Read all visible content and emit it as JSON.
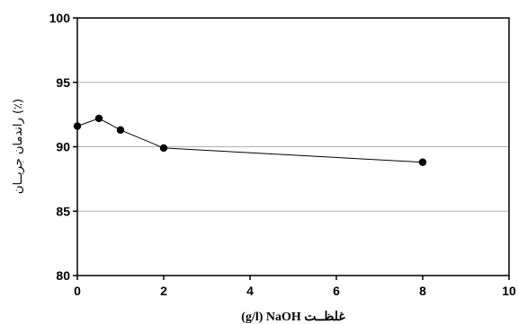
{
  "chart_data": {
    "type": "line",
    "title": "",
    "xlabel": "(g/l) NaOH غلظــت",
    "ylabel": "راندمان جریــان (٪)",
    "xlim": [
      0,
      10
    ],
    "ylim": [
      80,
      100
    ],
    "xticks": [
      0,
      2,
      4,
      6,
      8,
      10
    ],
    "yticks": [
      80,
      85,
      90,
      95,
      100
    ],
    "grid": "horizontal",
    "legend": "none",
    "series": [
      {
        "x": [
          0,
          0.5,
          1,
          2,
          8
        ],
        "y": [
          91.6,
          92.2,
          91.3,
          89.9,
          88.8
        ],
        "color": "#000000",
        "marker": "circle"
      }
    ]
  }
}
